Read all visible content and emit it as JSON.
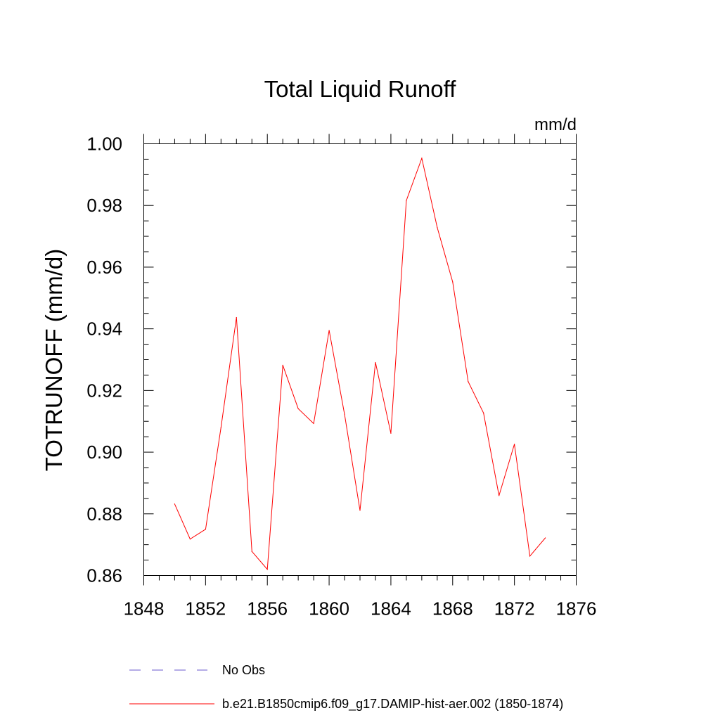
{
  "chart_data": {
    "type": "line",
    "title": "Total Liquid Runoff",
    "units": "mm/d",
    "ylabel": "TOTRUNOFF  (mm/d)",
    "xlabel": "",
    "xlim": [
      1848,
      1876
    ],
    "ylim": [
      0.86,
      1.0
    ],
    "x_ticks": [
      1848,
      1852,
      1856,
      1860,
      1864,
      1868,
      1872,
      1876
    ],
    "y_ticks": [
      "0.86",
      "0.88",
      "0.90",
      "0.92",
      "0.94",
      "0.96",
      "0.98",
      "1.00"
    ],
    "grid": false,
    "series": [
      {
        "name": "b.e21.B1850cmip6.f09_g17.DAMIP-hist-aer.002 (1850-1874)",
        "color": "#ff0000",
        "x": [
          1850,
          1851,
          1852,
          1853,
          1854,
          1855,
          1856,
          1857,
          1858,
          1859,
          1860,
          1861,
          1862,
          1863,
          1864,
          1865,
          1866,
          1867,
          1868,
          1869,
          1870,
          1871,
          1872,
          1873,
          1874
        ],
        "y": [
          0.8832,
          0.8718,
          0.875,
          0.908,
          0.9437,
          0.8678,
          0.862,
          0.9282,
          0.9141,
          0.9093,
          0.9395,
          0.9123,
          0.8811,
          0.9291,
          0.9061,
          0.9816,
          0.9953,
          0.9729,
          0.9552,
          0.9229,
          0.9127,
          0.8859,
          0.9026,
          0.8663,
          0.8722
        ]
      }
    ],
    "legend": {
      "placement": "bottom",
      "entries": [
        {
          "label": "No Obs",
          "color": "#6a5acd",
          "style": "dashed"
        },
        {
          "label": "b.e21.B1850cmip6.f09_g17.DAMIP-hist-aer.002 (1850-1874)",
          "color": "#ff0000",
          "style": "solid"
        }
      ]
    }
  }
}
